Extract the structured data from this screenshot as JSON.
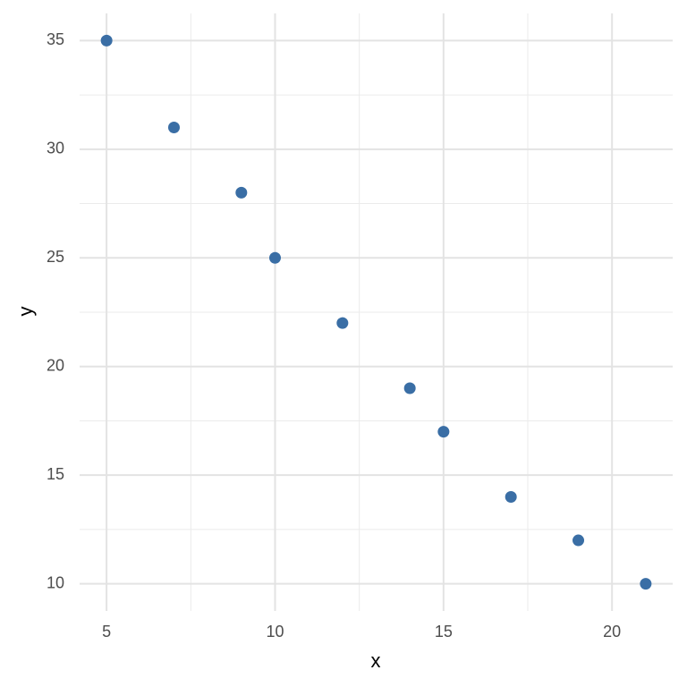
{
  "chart_data": {
    "type": "scatter",
    "x_label": "x",
    "y_label": "y",
    "series": [
      {
        "color": "#3a6ea5",
        "x": [
          5,
          7,
          9,
          10,
          12,
          14,
          15,
          17,
          19,
          21
        ],
        "values": [
          35,
          31,
          28,
          25,
          22,
          19,
          17,
          14,
          12,
          10
        ]
      }
    ],
    "xlim": [
      4.2,
      21.8
    ],
    "ylim": [
      8.75,
      36.25
    ],
    "xticks": [
      5,
      10,
      15,
      20
    ],
    "yticks": [
      10,
      15,
      20,
      25,
      30,
      35
    ],
    "xminor": [
      7.5,
      12.5,
      17.5
    ],
    "yminor": [
      12.5,
      17.5,
      22.5,
      27.5,
      32.5
    ],
    "grid": true
  }
}
